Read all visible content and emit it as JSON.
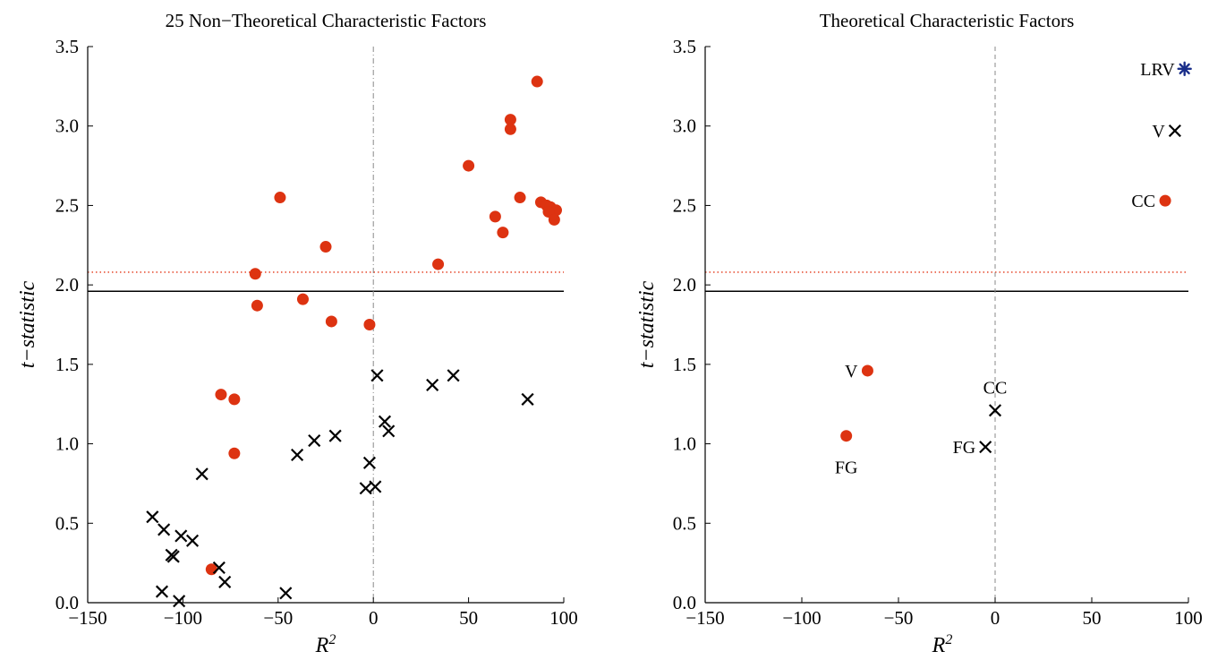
{
  "colors": {
    "sig_circle": "#dd3311",
    "cross": "#000000",
    "star": "#1a2e8a",
    "critical_solid": "#000000",
    "critical_dotted": "#e8553a",
    "zero_line": "#888888"
  },
  "chart_data": [
    {
      "type": "scatter",
      "title": "25 Non−Theoretical Characteristic Factors",
      "xlabel": "R",
      "xlabel_sup": "2",
      "ylabel": "t−statistic",
      "xlim": [
        -150,
        100
      ],
      "ylim": [
        0,
        3.5
      ],
      "xticks": [
        -150,
        -100,
        -50,
        0,
        50,
        100
      ],
      "xtick_labels": [
        "−150",
        "−100",
        "−50",
        "0",
        "50",
        "100"
      ],
      "yticks": [
        0,
        0.5,
        1,
        1.5,
        2,
        2.5,
        3,
        3.5
      ],
      "ytick_labels": [
        "0.0",
        "0.5",
        "1.0",
        "1.5",
        "2.0",
        "2.5",
        "3.0",
        "3.5"
      ],
      "hlines": [
        {
          "y": 1.96,
          "style": "solid"
        },
        {
          "y": 2.08,
          "style": "dotted"
        }
      ],
      "vline": {
        "x": 0,
        "style": "dashdot"
      },
      "series": [
        {
          "marker": "circle",
          "points": [
            [
              86,
              3.28
            ],
            [
              72,
              3.04
            ],
            [
              72,
              2.98
            ],
            [
              50,
              2.75
            ],
            [
              77,
              2.55
            ],
            [
              88,
              2.52
            ],
            [
              91,
              2.5
            ],
            [
              93,
              2.49
            ],
            [
              96,
              2.47
            ],
            [
              92,
              2.46
            ],
            [
              64,
              2.43
            ],
            [
              95,
              2.41
            ],
            [
              68,
              2.33
            ],
            [
              34,
              2.13
            ],
            [
              -49,
              2.55
            ],
            [
              -25,
              2.24
            ],
            [
              -62,
              2.07
            ],
            [
              -37,
              1.91
            ],
            [
              -61,
              1.87
            ],
            [
              -22,
              1.77
            ],
            [
              -2,
              1.75
            ],
            [
              -80,
              1.31
            ],
            [
              -73,
              1.28
            ],
            [
              -73,
              0.94
            ],
            [
              -85,
              0.21
            ]
          ]
        },
        {
          "marker": "cross",
          "points": [
            [
              2,
              1.43
            ],
            [
              42,
              1.43
            ],
            [
              31,
              1.37
            ],
            [
              81,
              1.28
            ],
            [
              6,
              1.14
            ],
            [
              8,
              1.08
            ],
            [
              -20,
              1.05
            ],
            [
              -31,
              1.02
            ],
            [
              -40,
              0.93
            ],
            [
              -2,
              0.88
            ],
            [
              -90,
              0.81
            ],
            [
              -4,
              0.72
            ],
            [
              1,
              0.73
            ],
            [
              -116,
              0.54
            ],
            [
              -110,
              0.46
            ],
            [
              -101,
              0.42
            ],
            [
              -95,
              0.39
            ],
            [
              -106,
              0.3
            ],
            [
              -105,
              0.29
            ],
            [
              -81,
              0.22
            ],
            [
              -78,
              0.13
            ],
            [
              -111,
              0.07
            ],
            [
              -46,
              0.06
            ],
            [
              -102,
              0.01
            ]
          ]
        }
      ]
    },
    {
      "type": "scatter",
      "title": "Theoretical Characteristic Factors",
      "xlabel": "R",
      "xlabel_sup": "2",
      "ylabel": "t−statistic",
      "xlim": [
        -150,
        100
      ],
      "ylim": [
        0,
        3.5
      ],
      "xticks": [
        -150,
        -100,
        -50,
        0,
        50,
        100
      ],
      "xtick_labels": [
        "−150",
        "−100",
        "−50",
        "0",
        "50",
        "100"
      ],
      "yticks": [
        0,
        0.5,
        1,
        1.5,
        2,
        2.5,
        3,
        3.5
      ],
      "ytick_labels": [
        "0.0",
        "0.5",
        "1.0",
        "1.5",
        "2.0",
        "2.5",
        "3.0",
        "3.5"
      ],
      "hlines": [
        {
          "y": 1.96,
          "style": "solid"
        },
        {
          "y": 2.08,
          "style": "dotted"
        }
      ],
      "vline": {
        "x": 0,
        "style": "dashed"
      },
      "points": [
        {
          "x": 98,
          "y": 3.36,
          "marker": "star",
          "label": "LRV",
          "label_pos": "left"
        },
        {
          "x": 93,
          "y": 2.97,
          "marker": "cross",
          "label": "V",
          "label_pos": "left"
        },
        {
          "x": 88,
          "y": 2.53,
          "marker": "circle",
          "label": "CC",
          "label_pos": "left"
        },
        {
          "x": -66,
          "y": 1.46,
          "marker": "circle",
          "label": "V",
          "label_pos": "left"
        },
        {
          "x": -77,
          "y": 1.05,
          "marker": "circle",
          "label": "FG",
          "label_pos": "below"
        },
        {
          "x": 0,
          "y": 1.21,
          "marker": "cross",
          "label": "CC",
          "label_pos": "above"
        },
        {
          "x": -5,
          "y": 0.98,
          "marker": "cross",
          "label": "FG",
          "label_pos": "left"
        }
      ]
    }
  ]
}
